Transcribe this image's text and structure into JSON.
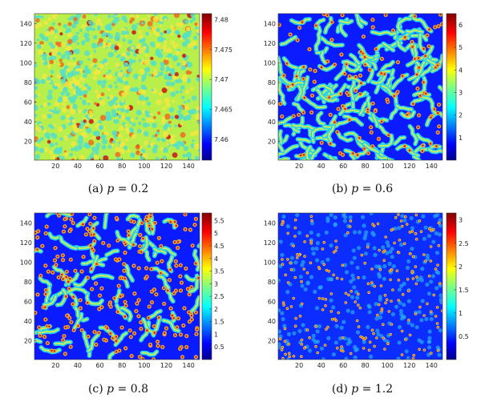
{
  "chart_data": [
    {
      "type": "heatmap",
      "caption": {
        "label": "(a)",
        "var": "p",
        "rest": " = 0.2"
      },
      "pattern": "noise",
      "xticks": [
        20,
        40,
        60,
        80,
        100,
        120,
        140
      ],
      "yticks": [
        20,
        40,
        60,
        80,
        100,
        120,
        140
      ],
      "xlim": [
        1,
        150
      ],
      "ylim": [
        1,
        150
      ],
      "colorbar": {
        "ticks": [
          "7.46",
          "7.465",
          "7.47",
          "7.475",
          "7.48"
        ],
        "tick_values": [
          7.46,
          7.465,
          7.47,
          7.475,
          7.48
        ],
        "range": [
          7.4565,
          7.481
        ]
      }
    },
    {
      "type": "heatmap",
      "caption": {
        "label": "(b)",
        "var": "p",
        "rest": " = 0.6"
      },
      "pattern": "labyrinth",
      "xticks": [
        20,
        40,
        60,
        80,
        100,
        120,
        140
      ],
      "yticks": [
        20,
        40,
        60,
        80,
        100,
        120,
        140
      ],
      "xlim": [
        1,
        150
      ],
      "ylim": [
        1,
        150
      ],
      "colorbar": {
        "ticks": [
          "1",
          "2",
          "3",
          "4",
          "5",
          "6"
        ],
        "tick_values": [
          1,
          2,
          3,
          4,
          5,
          6
        ],
        "range": [
          0,
          6.5
        ]
      }
    },
    {
      "type": "heatmap",
      "caption": {
        "label": "(c)",
        "var": "p",
        "rest": " = 0.8"
      },
      "pattern": "mixed",
      "xticks": [
        20,
        40,
        60,
        80,
        100,
        120,
        140
      ],
      "yticks": [
        20,
        40,
        60,
        80,
        100,
        120,
        140
      ],
      "xlim": [
        1,
        150
      ],
      "ylim": [
        1,
        150
      ],
      "colorbar": {
        "ticks": [
          "0.5",
          "1",
          "1.5",
          "2",
          "2.5",
          "3",
          "3.5",
          "4",
          "4.5",
          "5",
          "5.5"
        ],
        "tick_values": [
          0.5,
          1,
          1.5,
          2,
          2.5,
          3,
          3.5,
          4,
          4.5,
          5,
          5.5
        ],
        "range": [
          0,
          5.8
        ]
      }
    },
    {
      "type": "heatmap",
      "caption": {
        "label": "(d)",
        "var": "p",
        "rest": " = 1.2"
      },
      "pattern": "spots",
      "xticks": [
        20,
        40,
        60,
        80,
        100,
        120,
        140
      ],
      "yticks": [
        20,
        40,
        60,
        80,
        100,
        120,
        140
      ],
      "xlim": [
        1,
        150
      ],
      "ylim": [
        1,
        150
      ],
      "colorbar": {
        "ticks": [
          "0.5",
          "1",
          "1.5",
          "2",
          "2.5",
          "3"
        ],
        "tick_values": [
          0.5,
          1,
          1.5,
          2,
          2.5,
          3
        ],
        "range": [
          0,
          3.15
        ]
      }
    }
  ],
  "colormap": "jet"
}
